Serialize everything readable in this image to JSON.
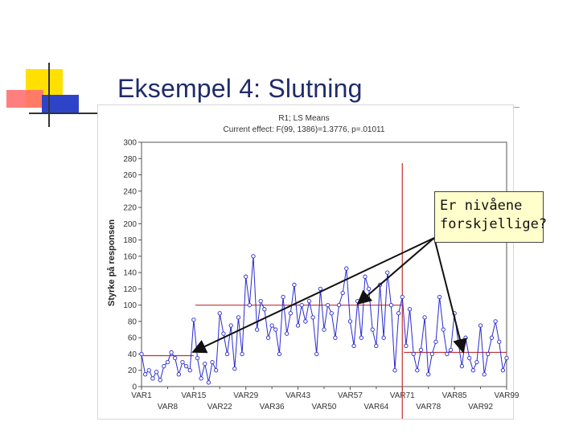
{
  "slide": {
    "title": "Eksempel 4: Slutning"
  },
  "callout": {
    "line1": "Er nivåene",
    "line2": "forskjellige?"
  },
  "colors": {
    "series": "#2a2ad0",
    "refline": "#c43030",
    "arrow": "#111111",
    "callout_bg": "#ffffcc",
    "title": "#1f2b6b"
  },
  "chart_data": {
    "type": "line",
    "title": "R1; LS Means",
    "subtitle": "Current effect: F(99, 1386)=1.3776, p=.01011",
    "xlabel": "",
    "ylabel": "Styrke på responsen",
    "ylim": [
      0,
      300
    ],
    "yticks": [
      0,
      20,
      40,
      60,
      80,
      100,
      120,
      140,
      160,
      180,
      200,
      220,
      240,
      260,
      280,
      300
    ],
    "x_tick_labels_top": [
      "VAR1",
      "VAR15",
      "VAR29",
      "VAR43",
      "VAR57",
      "VAR71",
      "VAR85",
      "VAR99"
    ],
    "x_tick_labels_bottom": [
      "VAR8",
      "VAR22",
      "VAR36",
      "VAR50",
      "VAR64",
      "VAR78",
      "VAR92"
    ],
    "x_tick_index_top": [
      1,
      15,
      29,
      43,
      57,
      71,
      85,
      99
    ],
    "x_tick_index_bottom": [
      8,
      22,
      36,
      50,
      64,
      78,
      92
    ],
    "series": [
      {
        "name": "LS Means",
        "x": [
          1,
          2,
          3,
          4,
          5,
          6,
          7,
          8,
          9,
          10,
          11,
          12,
          13,
          14,
          15,
          16,
          17,
          18,
          19,
          20,
          21,
          22,
          23,
          24,
          25,
          26,
          27,
          28,
          29,
          30,
          31,
          32,
          33,
          34,
          35,
          36,
          37,
          38,
          39,
          40,
          41,
          42,
          43,
          44,
          45,
          46,
          47,
          48,
          49,
          50,
          51,
          52,
          53,
          54,
          55,
          56,
          57,
          58,
          59,
          60,
          61,
          62,
          63,
          64,
          65,
          66,
          67,
          68,
          69,
          70,
          71,
          72,
          73,
          74,
          75,
          76,
          77,
          78,
          79,
          80,
          81,
          82,
          83,
          84,
          85,
          86,
          87,
          88,
          89,
          90,
          91,
          92,
          93,
          94,
          95,
          96,
          97,
          98,
          99
        ],
        "values": [
          40,
          15,
          20,
          10,
          18,
          8,
          25,
          30,
          42,
          35,
          15,
          30,
          25,
          20,
          82,
          35,
          10,
          28,
          5,
          30,
          20,
          90,
          65,
          40,
          75,
          22,
          85,
          40,
          135,
          100,
          160,
          70,
          105,
          95,
          60,
          75,
          70,
          40,
          110,
          65,
          90,
          125,
          75,
          100,
          80,
          105,
          85,
          40,
          120,
          70,
          100,
          90,
          60,
          100,
          115,
          145,
          80,
          50,
          105,
          60,
          135,
          120,
          70,
          50,
          125,
          60,
          140,
          100,
          20,
          90,
          110,
          50,
          95,
          40,
          20,
          45,
          85,
          15,
          40,
          55,
          110,
          70,
          40,
          45,
          90,
          55,
          25,
          60,
          35,
          20,
          30,
          75,
          15,
          40,
          60,
          80,
          55,
          20,
          35
        ]
      }
    ],
    "reference_lines": {
      "vertical_at": [
        71
      ],
      "horizontal_segments": [
        {
          "from": 1,
          "to": 15,
          "value": 38
        },
        {
          "from": 15,
          "to": 71,
          "value": 100
        },
        {
          "from": 71,
          "to": 99,
          "value": 42
        }
      ]
    },
    "grid": false,
    "legend": "none"
  }
}
